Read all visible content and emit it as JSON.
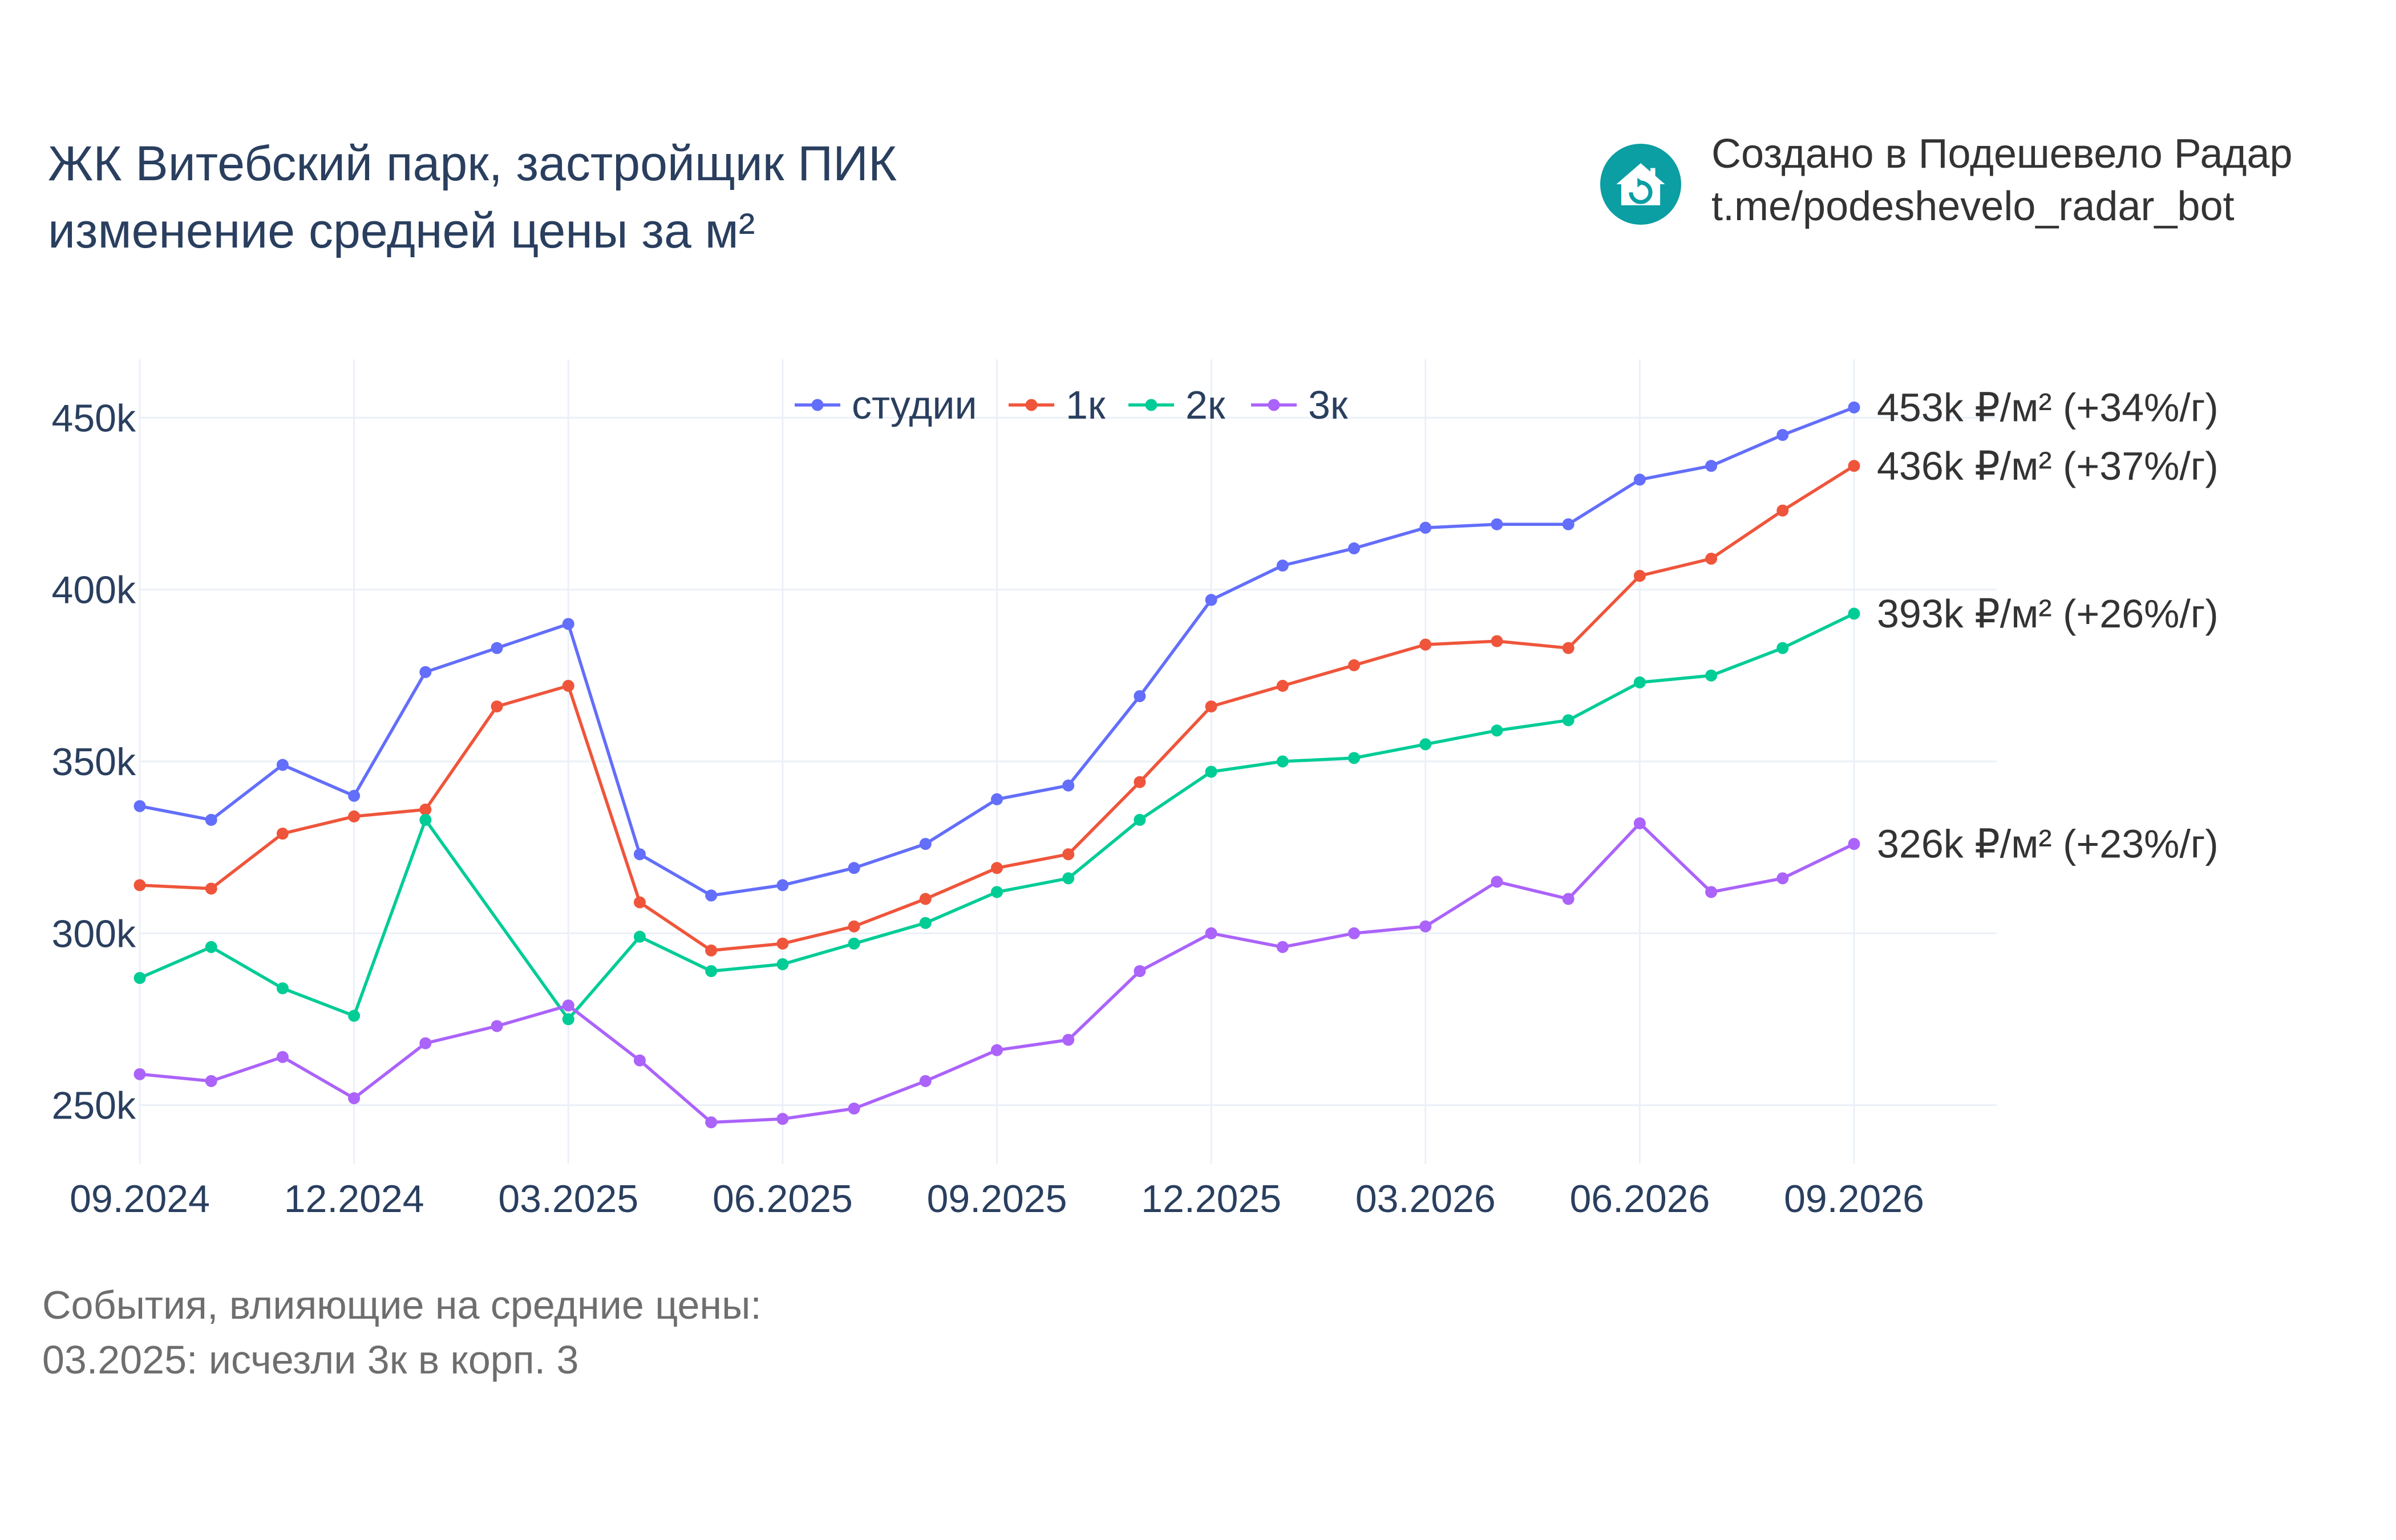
{
  "title": {
    "line1": "ЖК Витебский парк, застройщик ПИК",
    "line2": "изменение средней цены за м²"
  },
  "brand": {
    "line1": "Создано в Подешевело Радар",
    "line2": "t.me/podeshevelo_radar_bot",
    "logo_icon": "house-refresh-icon",
    "logo_color": "#0b9ea3"
  },
  "events": {
    "heading": "События, влияющие на средние цены:",
    "items": [
      "03.2025: исчезли 3к в корп. 3"
    ]
  },
  "chart_data": {
    "type": "line",
    "x": [
      "09.2024",
      "10.2024",
      "11.2024",
      "12.2024",
      "01.2025",
      "02.2025",
      "03.2025",
      "04.2025",
      "05.2025",
      "06.2025",
      "07.2025",
      "08.2025",
      "09.2025",
      "10.2025",
      "11.2025",
      "12.2025",
      "01.2026",
      "02.2026",
      "03.2026",
      "04.2026",
      "05.2026",
      "06.2026",
      "07.2026",
      "08.2026",
      "09.2026"
    ],
    "x_tick_labels": [
      "09.2024",
      "12.2024",
      "03.2025",
      "06.2025",
      "09.2025",
      "12.2025",
      "03.2026",
      "06.2026",
      "09.2026"
    ],
    "y_tick_values": [
      250000,
      300000,
      350000,
      400000,
      450000
    ],
    "y_tick_labels": [
      "250k",
      "300k",
      "350k",
      "400k",
      "450k"
    ],
    "ylim": [
      233000,
      467000
    ],
    "grid": true,
    "legend_position": "top-center",
    "series": [
      {
        "name": "студии",
        "color": "#636efa",
        "values": [
          337000,
          333000,
          349000,
          340000,
          376000,
          383000,
          390000,
          323000,
          311000,
          314000,
          319000,
          326000,
          339000,
          343000,
          369000,
          397000,
          407000,
          412000,
          418000,
          419000,
          419000,
          432000,
          436000,
          445000,
          453000
        ],
        "end_label": "453k ₽/м² (+34%/г)"
      },
      {
        "name": "1к",
        "color": "#ef553b",
        "values": [
          314000,
          313000,
          329000,
          334000,
          336000,
          366000,
          372000,
          309000,
          295000,
          297000,
          302000,
          310000,
          319000,
          323000,
          344000,
          366000,
          372000,
          378000,
          384000,
          385000,
          383000,
          404000,
          409000,
          423000,
          436000
        ],
        "end_label": "436k ₽/м² (+37%/г)"
      },
      {
        "name": "2к",
        "color": "#00cc96",
        "values": [
          287000,
          296000,
          284000,
          276000,
          333000,
          null,
          275000,
          299000,
          289000,
          291000,
          297000,
          303000,
          312000,
          316000,
          333000,
          347000,
          350000,
          351000,
          355000,
          359000,
          362000,
          373000,
          375000,
          383000,
          393000
        ],
        "end_label": "393k ₽/м² (+26%/г)"
      },
      {
        "name": "3к",
        "color": "#ab63fa",
        "values": [
          259000,
          257000,
          264000,
          252000,
          268000,
          273000,
          279000,
          263000,
          245000,
          246000,
          249000,
          257000,
          266000,
          269000,
          289000,
          300000,
          296000,
          300000,
          302000,
          315000,
          310000,
          332000,
          312000,
          316000,
          326000
        ],
        "end_label": "326k ₽/м² (+23%/г)"
      }
    ]
  }
}
